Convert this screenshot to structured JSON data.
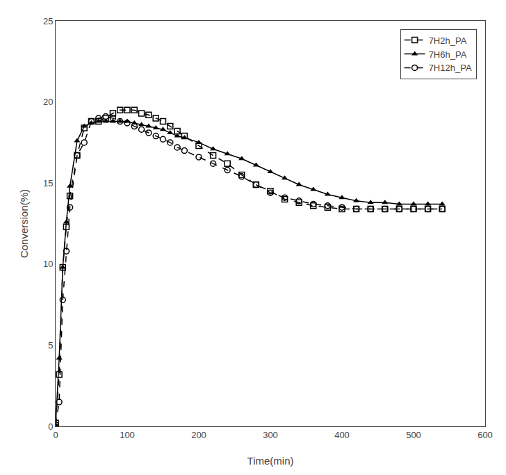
{
  "chart_data": {
    "type": "line",
    "xlabel": "Time(min)",
    "ylabel": "Conversion(%)",
    "x": [
      0,
      5,
      10,
      15,
      20,
      30,
      40,
      50,
      60,
      70,
      80,
      90,
      100,
      110,
      120,
      130,
      140,
      150,
      160,
      170,
      180,
      200,
      220,
      240,
      260,
      280,
      300,
      320,
      340,
      360,
      380,
      400,
      420,
      440,
      460,
      480,
      500,
      520,
      540
    ],
    "series": [
      {
        "name": "7H2h_PA",
        "color": "black",
        "marker": "square-open",
        "line_style": "dash",
        "values": [
          0.2,
          3.2,
          9.8,
          12.3,
          14.2,
          16.7,
          18.4,
          18.8,
          18.8,
          19.0,
          19.3,
          19.5,
          19.5,
          19.5,
          19.3,
          19.2,
          19.0,
          18.8,
          18.5,
          18.2,
          17.9,
          17.3,
          16.7,
          16.2,
          15.5,
          14.9,
          14.5,
          14.0,
          13.8,
          13.6,
          13.5,
          13.4,
          13.4,
          13.4,
          13.4,
          13.4,
          13.4,
          13.4,
          13.4
        ]
      },
      {
        "name": "7H6h_PA",
        "color": "black",
        "marker": "triangle-up",
        "line_style": "solid",
        "values": [
          0.1,
          4.2,
          9.8,
          12.6,
          14.8,
          17.6,
          18.5,
          18.7,
          18.8,
          18.8,
          18.8,
          18.8,
          18.8,
          18.7,
          18.6,
          18.5,
          18.4,
          18.3,
          18.1,
          17.9,
          17.8,
          17.5,
          17.1,
          16.8,
          16.5,
          16.1,
          15.7,
          15.3,
          14.9,
          14.6,
          14.3,
          14.1,
          13.9,
          13.8,
          13.8,
          13.7,
          13.7,
          13.7,
          13.7
        ]
      },
      {
        "name": "7H12h_PA",
        "color": "black",
        "marker": "circle-open",
        "line_style": "dash",
        "values": [
          0.1,
          1.5,
          7.8,
          10.8,
          13.5,
          16.7,
          17.5,
          18.8,
          19.0,
          19.1,
          19.0,
          18.8,
          18.7,
          18.5,
          18.3,
          18.1,
          17.9,
          17.7,
          17.5,
          17.2,
          17.0,
          16.6,
          16.2,
          15.8,
          15.4,
          14.9,
          14.4,
          14.1,
          13.9,
          13.7,
          13.6,
          13.5,
          13.4,
          13.4,
          13.4,
          13.4,
          13.4,
          13.4,
          13.4
        ]
      }
    ],
    "xlim": [
      0,
      600
    ],
    "ylim": [
      0,
      25
    ],
    "xticks": [
      0,
      100,
      200,
      300,
      400,
      500,
      600
    ],
    "yticks": [
      0,
      5,
      10,
      15,
      20,
      25
    ],
    "grid": false,
    "legend": "upper right"
  }
}
